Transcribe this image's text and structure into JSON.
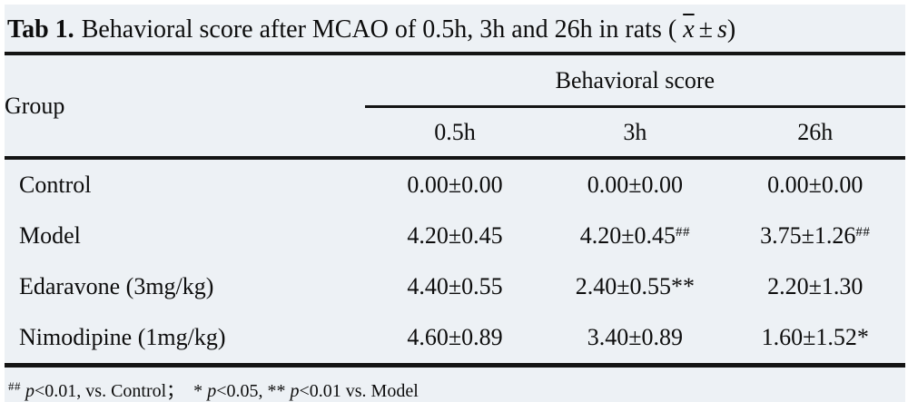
{
  "colors": {
    "background": "#edf1f5",
    "text": "#0d0d0d",
    "rule": "#141414"
  },
  "caption": {
    "tag": "Tab 1.",
    "body": "Behavioral score after MCAO of 0.5h, 3h and 26h in rats (",
    "xbar": "x",
    "pm": "±",
    "s": "s",
    "close": ")"
  },
  "table": {
    "group_header": "Group",
    "span_header": "Behavioral score",
    "time_columns": [
      "0.5h",
      "3h",
      "26h"
    ],
    "rows": [
      {
        "group": "Control",
        "cells": [
          {
            "base": "0.00±0.00",
            "sup": ""
          },
          {
            "base": "0.00±0.00",
            "sup": ""
          },
          {
            "base": "0.00±0.00",
            "sup": ""
          }
        ]
      },
      {
        "group": "Model",
        "cells": [
          {
            "base": "4.20±0.45",
            "sup": ""
          },
          {
            "base": "4.20±0.45",
            "sup": "##"
          },
          {
            "base": "3.75±1.26",
            "sup": "##"
          }
        ]
      },
      {
        "group": "Edaravone (3mg/kg)",
        "cells": [
          {
            "base": "4.40±0.55",
            "sup": ""
          },
          {
            "base": "2.40±0.55**",
            "sup": ""
          },
          {
            "base": "2.20±1.30",
            "sup": ""
          }
        ]
      },
      {
        "group": "Nimodipine (1mg/kg)",
        "cells": [
          {
            "base": "4.60±0.89",
            "sup": ""
          },
          {
            "base": "3.40±0.89",
            "sup": ""
          },
          {
            "base": "1.60±1.52*",
            "sup": ""
          }
        ]
      }
    ]
  },
  "footnote": {
    "sup": "##",
    "p1": "p",
    "t1": "<0.01, vs. Control；  * ",
    "p2": "p",
    "t2": "<0.05, ** ",
    "p3": "p",
    "t3": "<0.01 vs. Model"
  }
}
